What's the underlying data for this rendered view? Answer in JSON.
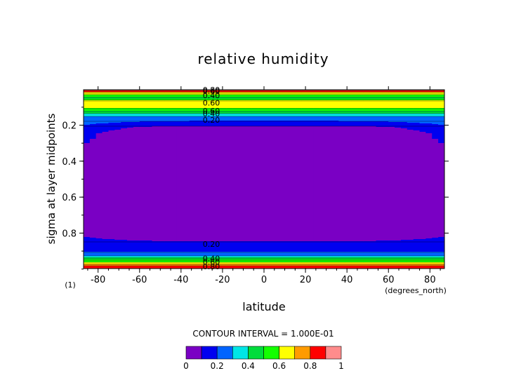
{
  "chart_data": {
    "type": "heatmap",
    "title": "relative humidity",
    "xlabel": "latitude",
    "ylabel": "sigma at layer midpoints",
    "x_unit": "(degrees_north)",
    "y_index_label": "(1)",
    "xlim": [
      -87,
      87
    ],
    "ylim_sigma": [
      0.997,
      0.003
    ],
    "x_ticks": [
      "-80",
      "-60",
      "-40",
      "-20",
      "0",
      "20",
      "40",
      "60",
      "80"
    ],
    "x_tick_values": [
      -80,
      -60,
      -40,
      -20,
      0,
      20,
      40,
      60,
      80
    ],
    "y_ticks": [
      "0.2",
      "0.4",
      "0.6",
      "0.8"
    ],
    "y_tick_values": [
      0.2,
      0.4,
      0.6,
      0.8
    ],
    "contour_interval_text": "CONTOUR INTERVAL = 1.000E-01",
    "contour_levels": [
      0,
      0.1,
      0.2,
      0.3,
      0.4,
      0.5,
      0.6,
      0.7,
      0.8,
      0.9,
      1.0
    ],
    "colorbar": {
      "ticks": [
        "0",
        "0.2",
        "0.4",
        "0.6",
        "0.8",
        "1"
      ],
      "tick_values": [
        0,
        0.2,
        0.4,
        0.6,
        0.8,
        1.0
      ],
      "colors": [
        "#7a00c4",
        "#0000f0",
        "#0064ff",
        "#00e6e6",
        "#00dc3c",
        "#14ff00",
        "#ffff00",
        "#ff9b00",
        "#ff0000",
        "#ff8c8c"
      ]
    },
    "sigma_profile": [
      [
        0.003,
        0.95
      ],
      [
        0.01,
        0.85
      ],
      [
        0.02,
        0.7
      ],
      [
        0.035,
        0.55
      ],
      [
        0.05,
        0.45
      ],
      [
        0.065,
        0.62
      ],
      [
        0.085,
        0.68
      ],
      [
        0.105,
        0.6
      ],
      [
        0.12,
        0.5
      ],
      [
        0.135,
        0.4
      ],
      [
        0.15,
        0.3
      ],
      [
        0.17,
        0.22
      ],
      [
        0.19,
        0.15
      ],
      [
        0.21,
        0.08
      ],
      [
        0.25,
        0.04
      ],
      [
        0.4,
        0.02
      ],
      [
        0.6,
        0.02
      ],
      [
        0.8,
        0.03
      ],
      [
        0.84,
        0.08
      ],
      [
        0.86,
        0.14
      ],
      [
        0.9,
        0.18
      ],
      [
        0.925,
        0.3
      ],
      [
        0.94,
        0.45
      ],
      [
        0.955,
        0.55
      ],
      [
        0.965,
        0.65
      ],
      [
        0.975,
        0.75
      ],
      [
        0.985,
        0.85
      ],
      [
        0.997,
        0.9
      ]
    ],
    "contour_labels": [
      {
        "text": "0.80",
        "sigma": 0.003
      },
      {
        "text": "0.60",
        "sigma": 0.01
      },
      {
        "text": "0.40",
        "sigma": 0.035
      },
      {
        "text": "0.60",
        "sigma": 0.075
      },
      {
        "text": "0.60",
        "sigma": 0.12
      },
      {
        "text": "0.40",
        "sigma": 0.135
      },
      {
        "text": "0.20",
        "sigma": 0.17
      },
      {
        "text": "0.20",
        "sigma": 0.86
      },
      {
        "text": "0.40",
        "sigma": 0.94
      },
      {
        "text": "0.60",
        "sigma": 0.96
      },
      {
        "text": "0.80",
        "sigma": 0.985
      }
    ]
  }
}
